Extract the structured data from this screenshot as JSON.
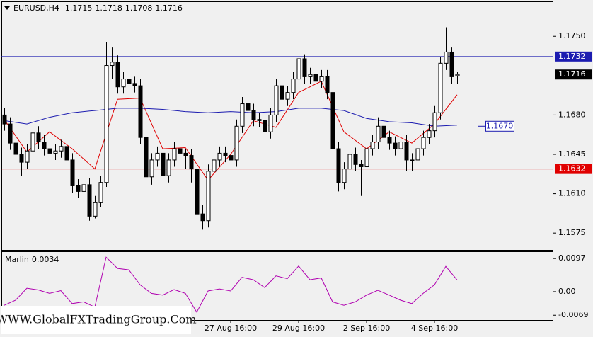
{
  "chart_data": {
    "type": "candlestick",
    "symbol": "EURUSD,H4",
    "up_color": "#ffffff",
    "down_color": "#000000",
    "categories": [
      null,
      null,
      null,
      null,
      null,
      null,
      null,
      null,
      null,
      null,
      null,
      null,
      null,
      null,
      null,
      null,
      null,
      null,
      null,
      null,
      null,
      null,
      null,
      null,
      null,
      null,
      null,
      null,
      null,
      null,
      null,
      null,
      null,
      null,
      null,
      null,
      null,
      null,
      null,
      null,
      "27 Aug 16:00",
      null,
      null,
      null,
      null,
      null,
      null,
      null,
      null,
      null,
      null,
      null,
      "29 Aug 16:00",
      null,
      null,
      null,
      null,
      null,
      null,
      null,
      null,
      null,
      null,
      null,
      "2 Sep 16:00",
      null,
      null,
      null,
      null,
      null,
      null,
      null,
      null,
      null,
      null,
      null,
      "4 Sep 16:00",
      null,
      null,
      null,
      null
    ],
    "open": [
      1.168,
      1.1672,
      1.1655,
      1.1645,
      1.1638,
      1.1648,
      1.1664,
      1.1656,
      1.165,
      1.1646,
      1.1648,
      1.1652,
      1.164,
      1.1617,
      1.1612,
      1.1618,
      1.159,
      1.1602,
      1.162,
      1.1724,
      1.1727,
      1.1705,
      1.1712,
      1.1708,
      1.1706,
      1.166,
      1.1625,
      1.164,
      1.1646,
      1.1626,
      1.164,
      1.165,
      1.1646,
      1.1644,
      1.1632,
      1.1592,
      1.1586,
      1.163,
      1.164,
      1.1646,
      1.1644,
      1.164,
      1.167,
      1.169,
      1.1684,
      1.1676,
      1.1675,
      1.1665,
      1.168,
      1.1706,
      1.1694,
      1.17,
      1.1712,
      1.173,
      1.1714,
      1.1716,
      1.171,
      1.1714,
      1.17,
      1.165,
      1.162,
      1.1632,
      1.1645,
      1.1636,
      1.1634,
      1.165,
      1.1656,
      1.167,
      1.166,
      1.1655,
      1.165,
      1.1656,
      1.164,
      1.164,
      1.165,
      1.166,
      1.1666,
      1.1682,
      1.1726,
      1.1736,
      1.1715
    ],
    "high": [
      1.1686,
      1.1678,
      1.1661,
      1.1651,
      1.1654,
      1.1668,
      1.167,
      1.1662,
      1.1656,
      1.1654,
      1.1658,
      1.1658,
      1.1646,
      1.1623,
      1.1624,
      1.1624,
      1.1608,
      1.1626,
      1.1745,
      1.174,
      1.1733,
      1.1718,
      1.1718,
      1.1714,
      1.1712,
      1.1666,
      1.1646,
      1.1652,
      1.1652,
      1.1646,
      1.1656,
      1.1656,
      1.165,
      1.165,
      1.1638,
      1.16,
      1.1636,
      1.1646,
      1.1652,
      1.1652,
      1.165,
      1.1676,
      1.1696,
      1.1696,
      1.169,
      1.1682,
      1.1681,
      1.1686,
      1.1712,
      1.1712,
      1.1706,
      1.1718,
      1.1734,
      1.1734,
      1.1722,
      1.1722,
      1.172,
      1.172,
      1.1706,
      1.1656,
      1.1638,
      1.1651,
      1.1651,
      1.164,
      1.1656,
      1.1662,
      1.1678,
      1.1676,
      1.1666,
      1.1661,
      1.1662,
      1.1662,
      1.1646,
      1.1656,
      1.1666,
      1.1672,
      1.1688,
      1.1732,
      1.1758,
      1.174,
      1.1718
    ],
    "low": [
      1.1666,
      1.1649,
      1.1632,
      1.1626,
      1.1632,
      1.1642,
      1.165,
      1.1644,
      1.164,
      1.164,
      1.1642,
      1.1634,
      1.1611,
      1.1606,
      1.1606,
      1.1586,
      1.1588,
      1.1598,
      1.1616,
      1.1712,
      1.1699,
      1.1699,
      1.1702,
      1.17,
      1.1654,
      1.1612,
      1.1618,
      1.1634,
      1.1614,
      1.162,
      1.1634,
      1.164,
      1.1632,
      1.162,
      1.1586,
      1.1578,
      1.158,
      1.1624,
      1.1634,
      1.1638,
      1.1632,
      1.1634,
      1.1664,
      1.1678,
      1.167,
      1.1669,
      1.1659,
      1.1659,
      1.1674,
      1.1688,
      1.1688,
      1.1694,
      1.1706,
      1.1708,
      1.1708,
      1.1704,
      1.1704,
      1.1694,
      1.1644,
      1.1612,
      1.1614,
      1.1626,
      1.163,
      1.1608,
      1.1628,
      1.1644,
      1.165,
      1.1654,
      1.1649,
      1.1644,
      1.1644,
      1.163,
      1.163,
      1.1634,
      1.1644,
      1.1654,
      1.166,
      1.1676,
      1.172,
      1.1708,
      1.1708
    ],
    "close": [
      1.1672,
      1.1655,
      1.1645,
      1.1638,
      1.1648,
      1.1664,
      1.1656,
      1.165,
      1.1646,
      1.1648,
      1.1652,
      1.164,
      1.1617,
      1.1612,
      1.1618,
      1.159,
      1.1602,
      1.162,
      1.1724,
      1.1727,
      1.1705,
      1.1712,
      1.1708,
      1.1706,
      1.166,
      1.1625,
      1.164,
      1.1646,
      1.1626,
      1.164,
      1.165,
      1.1646,
      1.1644,
      1.1632,
      1.1592,
      1.1586,
      1.163,
      1.164,
      1.1646,
      1.1644,
      1.164,
      1.167,
      1.169,
      1.1684,
      1.1676,
      1.1675,
      1.1665,
      1.168,
      1.1706,
      1.1694,
      1.17,
      1.1712,
      1.173,
      1.1714,
      1.1716,
      1.171,
      1.1714,
      1.17,
      1.165,
      1.162,
      1.1632,
      1.1645,
      1.1636,
      1.1634,
      1.165,
      1.1656,
      1.167,
      1.166,
      1.1655,
      1.165,
      1.1656,
      1.164,
      1.164,
      1.165,
      1.166,
      1.1666,
      1.1682,
      1.1726,
      1.1736,
      1.1714,
      1.1716
    ],
    "ylim": [
      1.156,
      1.1781
    ],
    "yticks": [
      {
        "value": 1.175,
        "label": "1.1750"
      },
      {
        "value": 1.168,
        "label": "1.1680"
      },
      1.1645,
      {
        "value": 1.161,
        "label": "1.1610"
      },
      1.1575
    ],
    "levels": [
      {
        "value": 1.1732,
        "color": "#1c1cb0"
      },
      {
        "value": 1.1632,
        "color": "#e00000"
      }
    ],
    "annotation": {
      "value": 1.167,
      "label": "1.1670",
      "color": "#1c1cb0"
    },
    "moving_averages": [
      {
        "color": "#e00000",
        "x": [
          0,
          4,
          8,
          12,
          16,
          20,
          24,
          28,
          32,
          36,
          40,
          44,
          48,
          52,
          56,
          60,
          64,
          68,
          72,
          76,
          80
        ],
        "values": [
          1.1676,
          1.1647,
          1.1665,
          1.165,
          1.1632,
          1.1694,
          1.1695,
          1.165,
          1.1651,
          1.1622,
          1.1645,
          1.1675,
          1.1669,
          1.17,
          1.171,
          1.1665,
          1.165,
          1.1665,
          1.1655,
          1.1672,
          1.1698
        ]
      },
      {
        "color": "#1c1cb0",
        "x": [
          0,
          4,
          8,
          12,
          16,
          20,
          24,
          28,
          32,
          36,
          40,
          44,
          48,
          52,
          56,
          60,
          64,
          68,
          72,
          76,
          80
        ],
        "values": [
          1.1675,
          1.1672,
          1.1678,
          1.1682,
          1.1684,
          1.1686,
          1.1686,
          1.1685,
          1.1683,
          1.1682,
          1.1683,
          1.1682,
          1.1683,
          1.1686,
          1.1686,
          1.1684,
          1.1677,
          1.1674,
          1.1673,
          1.167,
          1.1671
        ]
      }
    ],
    "indicator": {
      "name": "Marlin",
      "color": "#b000b0",
      "x": [
        0,
        2,
        4,
        6,
        8,
        10,
        12,
        14,
        16,
        18,
        20,
        22,
        24,
        26,
        28,
        30,
        32,
        34,
        36,
        38,
        40,
        42,
        44,
        46,
        48,
        50,
        52,
        54,
        56,
        58,
        60,
        62,
        64,
        66,
        68,
        70,
        72,
        74,
        76,
        78,
        80
      ],
      "values": [
        -0.004,
        -0.0025,
        0.001,
        0.0005,
        -0.0005,
        0.0003,
        -0.0035,
        -0.003,
        -0.0045,
        0.0101,
        0.0068,
        0.0064,
        0.002,
        -0.0005,
        -0.001,
        0.0006,
        -0.0005,
        -0.006,
        0.0002,
        0.0008,
        0.0002,
        0.0042,
        0.0035,
        0.0012,
        0.0046,
        0.0038,
        0.0075,
        0.0035,
        0.004,
        -0.003,
        -0.004,
        -0.003,
        -0.001,
        0.0004,
        -0.001,
        -0.0025,
        -0.0035,
        -0.0005,
        0.002,
        0.0074,
        0.0034
      ],
      "ylim": [
        -0.0083,
        0.0118
      ],
      "yticks": [
        0.0097,
        {
          "value": 0,
          "label": "0.00"
        },
        -0.0069
      ]
    },
    "watermark": "WWW.GlobalFXTradingGroup.Com"
  }
}
